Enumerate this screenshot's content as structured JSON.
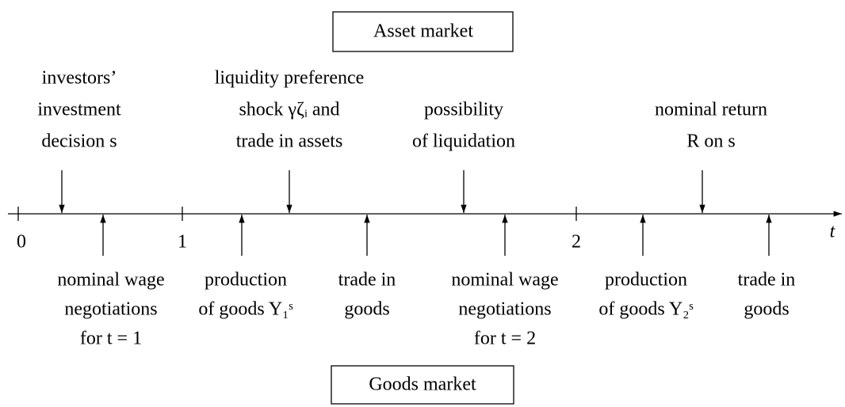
{
  "asset_market": "Asset market",
  "goods_market": "Goods market",
  "axis_label": "t",
  "ticks": [
    "0",
    "1",
    "2"
  ],
  "events_above": [
    {
      "lines": [
        "investors’",
        "investment",
        "decision s"
      ]
    },
    {
      "lines": [
        "liquidity preference",
        "shock γζᵢ and",
        "trade in assets"
      ]
    },
    {
      "lines": [
        "possibility",
        "of liquidation"
      ]
    },
    {
      "lines": [
        "nominal return",
        "R on s"
      ]
    }
  ],
  "events_below": [
    {
      "lines": [
        "nominal wage",
        "negotiations",
        "for t = 1"
      ]
    },
    {
      "lines": [
        "production",
        "of goods Y₁ˢ"
      ]
    },
    {
      "lines": [
        "trade in",
        "goods"
      ]
    },
    {
      "lines": [
        "nominal wage",
        "negotiations",
        "for t = 2"
      ]
    },
    {
      "lines": [
        "production",
        "of goods Y₂ˢ"
      ]
    },
    {
      "lines": [
        "trade in",
        "goods"
      ]
    }
  ]
}
